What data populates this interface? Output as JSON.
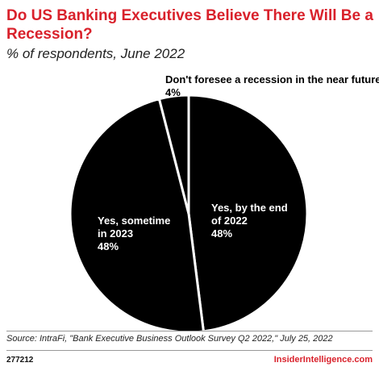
{
  "header": {
    "title": "Do US Banking Executives Believe There Will Be a Recession?",
    "subtitle": "% of respondents, June 2022"
  },
  "footer": {
    "source": "Source: IntraFi, \"Bank Executive Business Outlook Survey Q2 2022,\" July 25, 2022",
    "chart_id": "277212",
    "brand": "InsiderIntelligence.com"
  },
  "colors": {
    "title": "#d9212b",
    "slice_fill": "#000000",
    "slice_stroke": "#ffffff",
    "label_light": "#ffffff",
    "label_dark": "#000000"
  },
  "chart_data": {
    "type": "pie",
    "title": "Do US Banking Executives Believe There Will Be a Recession?",
    "subtitle": "% of respondents, June 2022",
    "slices": [
      {
        "label": "Yes, by the end of 2022",
        "value": 48,
        "value_label": "48%"
      },
      {
        "label": "Yes, sometime in 2023",
        "value": 48,
        "value_label": "48%"
      },
      {
        "label": "Don't foresee a recession in the near future",
        "value": 4,
        "value_label": "4%"
      }
    ]
  }
}
